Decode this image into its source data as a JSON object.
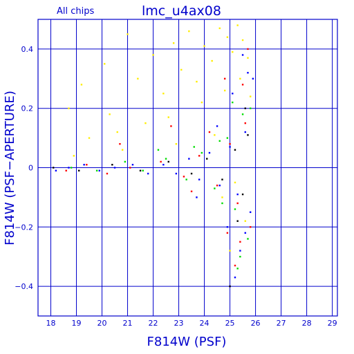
{
  "chart_data": {
    "type": "scatter",
    "title": "lmc_u4ax08",
    "subtitle": "All chips",
    "xlabel": "F814W (PSF)",
    "ylabel": "F814W (PSF−APERTURE)",
    "xlim": [
      17.5,
      29.2
    ],
    "ylim": [
      -0.5,
      0.5
    ],
    "x_ticks": [
      18,
      19,
      20,
      21,
      22,
      23,
      24,
      25,
      26,
      27,
      28,
      29
    ],
    "y_ticks": [
      -0.4,
      -0.2,
      0,
      0.2,
      0.4
    ],
    "y_tick_labels": [
      "−0.4",
      "−0.2",
      "0",
      "0.2",
      "0.4"
    ],
    "grid": true,
    "colors": {
      "axis": "#0000cc",
      "grid": "#0000cc",
      "series": [
        "#ffee00",
        "#ff0000",
        "#00dd00",
        "#0000ff",
        "#000000"
      ]
    },
    "series": [
      {
        "color": "#ffee00",
        "points": [
          [
            18.7,
            0.2
          ],
          [
            19.2,
            0.28
          ],
          [
            20.1,
            0.35
          ],
          [
            20.6,
            0.12
          ],
          [
            21.0,
            0.45
          ],
          [
            21.4,
            0.3
          ],
          [
            22.0,
            0.38
          ],
          [
            22.4,
            0.25
          ],
          [
            22.8,
            0.42
          ],
          [
            23.1,
            0.33
          ],
          [
            23.4,
            0.46
          ],
          [
            23.7,
            0.29
          ],
          [
            24.0,
            0.41
          ],
          [
            24.3,
            0.36
          ],
          [
            24.6,
            0.47
          ],
          [
            24.9,
            0.44
          ],
          [
            25.1,
            0.39
          ],
          [
            25.3,
            0.48
          ],
          [
            25.5,
            0.43
          ],
          [
            25.7,
            0.37
          ],
          [
            19.5,
            0.1
          ],
          [
            20.3,
            0.18
          ],
          [
            21.7,
            0.15
          ],
          [
            22.6,
            0.17
          ],
          [
            23.9,
            0.22
          ],
          [
            24.8,
            0.26
          ],
          [
            25.4,
            0.3
          ],
          [
            25.8,
            0.24
          ],
          [
            18.9,
            0.04
          ],
          [
            20.8,
            0.06
          ],
          [
            22.9,
            0.08
          ],
          [
            24.4,
            0.11
          ],
          [
            25.2,
            -0.05
          ],
          [
            25.6,
            -0.18
          ],
          [
            25.0,
            -0.28
          ],
          [
            24.7,
            -0.1
          ]
        ]
      },
      {
        "color": "#ff0000",
        "points": [
          [
            18.6,
            -0.01
          ],
          [
            19.4,
            0.01
          ],
          [
            20.2,
            -0.02
          ],
          [
            21.1,
            0.0
          ],
          [
            22.3,
            0.02
          ],
          [
            23.2,
            -0.03
          ],
          [
            23.8,
            0.04
          ],
          [
            24.5,
            -0.06
          ],
          [
            25.0,
            0.08
          ],
          [
            25.3,
            -0.12
          ],
          [
            25.6,
            0.15
          ],
          [
            25.8,
            -0.2
          ],
          [
            24.2,
            0.12
          ],
          [
            24.9,
            -0.22
          ],
          [
            25.5,
            0.28
          ],
          [
            25.2,
            -0.33
          ],
          [
            20.7,
            0.08
          ],
          [
            22.7,
            0.14
          ],
          [
            23.5,
            -0.08
          ],
          [
            24.8,
            0.3
          ],
          [
            25.7,
            0.4
          ],
          [
            25.4,
            -0.25
          ]
        ]
      },
      {
        "color": "#00dd00",
        "points": [
          [
            18.8,
            0.0
          ],
          [
            19.8,
            -0.01
          ],
          [
            20.9,
            0.02
          ],
          [
            21.6,
            -0.01
          ],
          [
            22.5,
            0.03
          ],
          [
            23.3,
            -0.04
          ],
          [
            23.9,
            0.05
          ],
          [
            24.4,
            -0.07
          ],
          [
            24.9,
            0.1
          ],
          [
            25.2,
            -0.14
          ],
          [
            25.5,
            0.18
          ],
          [
            25.7,
            -0.24
          ],
          [
            25.1,
            0.22
          ],
          [
            25.4,
            -0.3
          ],
          [
            24.6,
            0.09
          ],
          [
            23.6,
            0.07
          ],
          [
            22.2,
            0.06
          ],
          [
            25.8,
            0.2
          ],
          [
            25.3,
            -0.34
          ],
          [
            24.7,
            -0.12
          ]
        ]
      },
      {
        "color": "#0000ff",
        "points": [
          [
            18.2,
            -0.01
          ],
          [
            18.7,
            0.0
          ],
          [
            19.3,
            0.01
          ],
          [
            19.9,
            -0.01
          ],
          [
            20.5,
            0.0
          ],
          [
            21.2,
            0.01
          ],
          [
            21.8,
            -0.02
          ],
          [
            22.4,
            0.01
          ],
          [
            22.9,
            -0.02
          ],
          [
            23.4,
            0.03
          ],
          [
            23.8,
            -0.04
          ],
          [
            24.2,
            0.05
          ],
          [
            24.6,
            -0.06
          ],
          [
            25.0,
            0.07
          ],
          [
            25.3,
            -0.09
          ],
          [
            25.6,
            0.12
          ],
          [
            25.8,
            -0.15
          ],
          [
            25.1,
            0.25
          ],
          [
            25.4,
            -0.28
          ],
          [
            25.7,
            0.32
          ],
          [
            24.9,
            -0.2
          ],
          [
            25.5,
            0.38
          ],
          [
            25.2,
            -0.37
          ],
          [
            24.5,
            0.14
          ],
          [
            23.7,
            -0.1
          ],
          [
            25.9,
            0.3
          ],
          [
            25.6,
            -0.22
          ]
        ]
      },
      {
        "color": "#000000",
        "points": [
          [
            18.1,
            0.0
          ],
          [
            19.1,
            -0.01
          ],
          [
            20.4,
            0.01
          ],
          [
            21.5,
            -0.01
          ],
          [
            22.6,
            0.02
          ],
          [
            23.5,
            -0.02
          ],
          [
            24.1,
            0.03
          ],
          [
            24.7,
            -0.04
          ],
          [
            25.2,
            0.06
          ],
          [
            25.5,
            -0.09
          ],
          [
            25.7,
            0.11
          ],
          [
            25.0,
            -0.4
          ],
          [
            25.3,
            -0.18
          ],
          [
            25.6,
            0.2
          ]
        ]
      }
    ]
  }
}
